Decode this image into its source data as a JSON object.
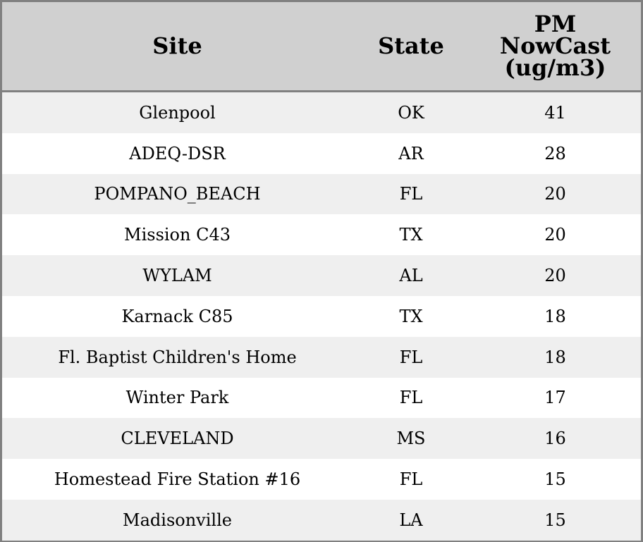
{
  "chart_data": {
    "type": "table",
    "columns": [
      "Site",
      "State",
      "PM NowCast (ug/m3)"
    ],
    "header_lines": [
      [
        "Site"
      ],
      [
        "State"
      ],
      [
        "PM",
        "NowCast",
        "(ug/m3)"
      ]
    ],
    "rows": [
      [
        "Glenpool",
        "OK",
        "41"
      ],
      [
        "ADEQ-DSR",
        "AR",
        "28"
      ],
      [
        "POMPANO_BEACH",
        "FL",
        "20"
      ],
      [
        "Mission C43",
        "TX",
        "20"
      ],
      [
        "WYLAM",
        "AL",
        "20"
      ],
      [
        "Karnack C85",
        "TX",
        "18"
      ],
      [
        "Fl. Baptist Children's Home",
        "FL",
        "18"
      ],
      [
        "Winter Park",
        "FL",
        "17"
      ],
      [
        "CLEVELAND",
        "MS",
        "16"
      ],
      [
        "Homestead Fire Station #16",
        "FL",
        "15"
      ],
      [
        "Madisonville",
        "LA",
        "15"
      ]
    ],
    "colors": {
      "header_bg": "#d0d0d0",
      "stripe": "#efefef",
      "border": "#808080"
    }
  }
}
